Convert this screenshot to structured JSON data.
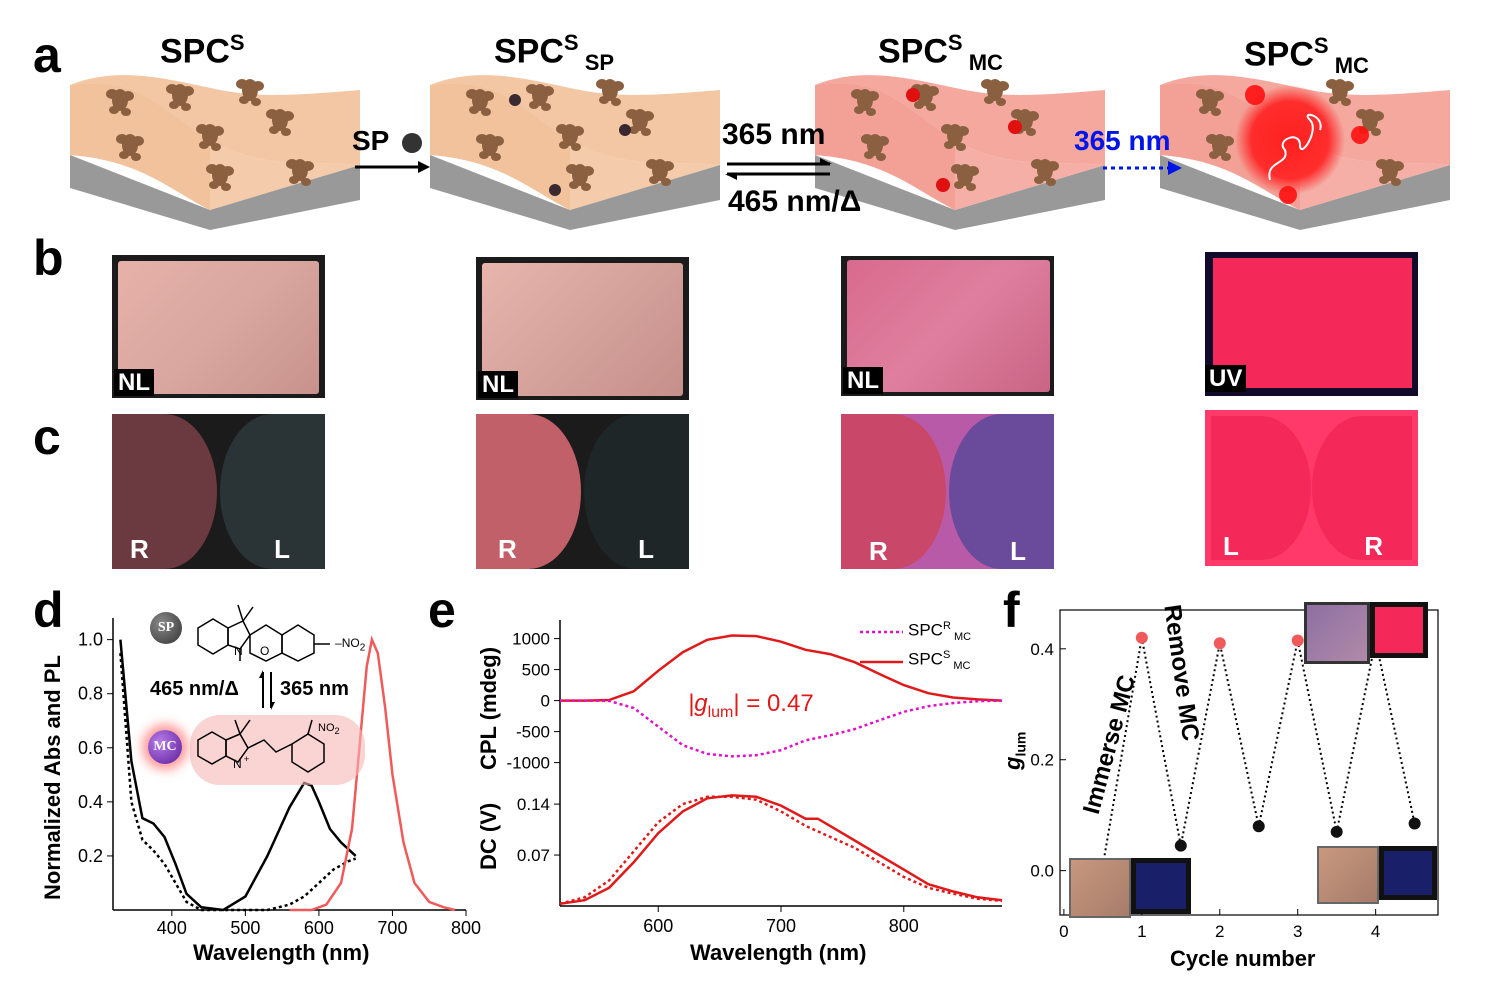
{
  "panel_labels": [
    "a",
    "b",
    "c",
    "d",
    "e",
    "f"
  ],
  "row_a": {
    "titles": [
      {
        "main": "SPC",
        "sup": "S",
        "sub": ""
      },
      {
        "main": "SPC",
        "sup": "S",
        "sub": " SP"
      },
      {
        "main": "SPC",
        "sup": "S",
        "sub": " MC"
      },
      {
        "main": "SPC",
        "sup": "S",
        "sub": " MC"
      }
    ],
    "arrow1_label": "SP",
    "arrow2_top": "365 nm",
    "arrow2_bottom": "465 nm/Δ",
    "arrow3_label": "365 nm",
    "colors": {
      "sheet_1": "#f2c29c",
      "sheet_3": "#f3a196",
      "uv_arrow": "#0015e8",
      "glow": "#ff1a1a"
    }
  },
  "row_b": {
    "tags": [
      "NL",
      "NL",
      "NL",
      "UV"
    ]
  },
  "row_c": {
    "tags": [
      [
        "R",
        "L"
      ],
      [
        "R",
        "L"
      ],
      [
        "R",
        "L"
      ],
      [
        "L",
        "R"
      ]
    ]
  },
  "panel_d": {
    "sp_badge": "SP",
    "mc_badge": "MC",
    "no2": "NO",
    "no2_sub": "2",
    "arrow_left": "465 nm/Δ",
    "arrow_right": "365 nm",
    "chart_data": {
      "type": "line",
      "xlabel": "Wavelength (nm)",
      "ylabel": "Normalized Abs and PL",
      "xlim": [
        320,
        800
      ],
      "ylim": [
        0,
        1.08
      ],
      "xticks": [
        "400",
        "500",
        "600",
        "700",
        "800"
      ],
      "yticks": [
        "0.2",
        "0.4",
        "0.6",
        "0.8",
        "1.0"
      ],
      "series": [
        {
          "style": "solid",
          "color": "#000000",
          "x": [
            330,
            345,
            360,
            375,
            390,
            405,
            420,
            440,
            470,
            500,
            530,
            560,
            580,
            590,
            600,
            615,
            630,
            650
          ],
          "y": [
            1.0,
            0.55,
            0.34,
            0.32,
            0.27,
            0.17,
            0.06,
            0.01,
            0.0,
            0.05,
            0.2,
            0.38,
            0.47,
            0.46,
            0.4,
            0.3,
            0.25,
            0.2
          ]
        },
        {
          "style": "dotted",
          "color": "#000000",
          "x": [
            330,
            345,
            360,
            375,
            390,
            405,
            420,
            440,
            470,
            500,
            530,
            560,
            580,
            600,
            620,
            640,
            650
          ],
          "y": [
            0.95,
            0.4,
            0.26,
            0.22,
            0.17,
            0.1,
            0.03,
            0.0,
            0.0,
            0.0,
            0.0,
            0.02,
            0.05,
            0.1,
            0.15,
            0.18,
            0.19
          ]
        },
        {
          "style": "solid",
          "color": "#f05a5a",
          "x": [
            560,
            590,
            610,
            630,
            645,
            655,
            665,
            672,
            680,
            690,
            700,
            715,
            730,
            750,
            770,
            785
          ],
          "y": [
            0.0,
            0.0,
            0.02,
            0.1,
            0.3,
            0.6,
            0.9,
            1.0,
            0.95,
            0.75,
            0.5,
            0.25,
            0.1,
            0.03,
            0.01,
            0.0
          ]
        }
      ]
    }
  },
  "panel_e": {
    "annotation_pre": "|g",
    "annotation_sub": "lum",
    "annotation_post": "| = 0.47",
    "legend": [
      {
        "main": "SPC",
        "sup": "R",
        "sub": " MC",
        "style": "dotted",
        "color": "#e011c8"
      },
      {
        "main": "SPC",
        "sup": "S",
        "sub": " MC",
        "style": "solid",
        "color": "#e01a1a"
      }
    ],
    "chart_data": [
      {
        "type": "line",
        "ylabel": "CPL (mdeg)",
        "xlim": [
          520,
          880
        ],
        "ylim": [
          -1200,
          1300
        ],
        "yticks": [
          "1000",
          "500",
          "0",
          "-500",
          "-1000"
        ],
        "series": [
          {
            "name": "SPCS MC",
            "style": "solid",
            "color": "#e01a1a",
            "x": [
              520,
              540,
              560,
              580,
              600,
              620,
              640,
              660,
              680,
              700,
              720,
              740,
              760,
              780,
              800,
              820,
              840,
              860,
              880
            ],
            "y": [
              0,
              0,
              10,
              150,
              480,
              780,
              980,
              1050,
              1040,
              950,
              820,
              750,
              620,
              430,
              250,
              120,
              50,
              20,
              0
            ]
          },
          {
            "name": "SPCR MC",
            "style": "dotted",
            "color": "#e011c8",
            "x": [
              520,
              540,
              560,
              580,
              600,
              620,
              640,
              660,
              680,
              700,
              720,
              740,
              760,
              780,
              800,
              820,
              840,
              860,
              880
            ],
            "y": [
              0,
              0,
              -5,
              -120,
              -420,
              -720,
              -860,
              -900,
              -880,
              -800,
              -640,
              -560,
              -460,
              -320,
              -180,
              -90,
              -40,
              -10,
              0
            ]
          }
        ]
      },
      {
        "type": "line",
        "xlabel": "Wavelength (nm)",
        "ylabel": "DC (V)",
        "xlim": [
          520,
          880
        ],
        "ylim": [
          0,
          0.18
        ],
        "xticks": [
          "600",
          "700",
          "800"
        ],
        "yticks": [
          "0.14",
          "0.07"
        ],
        "series": [
          {
            "style": "solid",
            "color": "#e01a1a",
            "x": [
              520,
              540,
              560,
              580,
              600,
              620,
              640,
              660,
              680,
              700,
              720,
              730,
              740,
              760,
              780,
              800,
              820,
              840,
              860,
              880
            ],
            "y": [
              0.003,
              0.008,
              0.025,
              0.06,
              0.1,
              0.13,
              0.148,
              0.152,
              0.15,
              0.138,
              0.12,
              0.12,
              0.11,
              0.09,
              0.07,
              0.05,
              0.03,
              0.02,
              0.012,
              0.008
            ]
          },
          {
            "style": "dotted",
            "color": "#e01a1a",
            "x": [
              520,
              540,
              560,
              580,
              600,
              620,
              640,
              660,
              680,
              700,
              720,
              740,
              760,
              780,
              800,
              820,
              840,
              860,
              880
            ],
            "y": [
              0.003,
              0.012,
              0.035,
              0.075,
              0.115,
              0.14,
              0.15,
              0.15,
              0.146,
              0.13,
              0.11,
              0.095,
              0.08,
              0.06,
              0.04,
              0.025,
              0.017,
              0.01,
              0.007
            ]
          }
        ]
      }
    ]
  },
  "panel_f": {
    "immerse_label": "Immerse MC",
    "remove_label": "Remove MC",
    "chart_data": {
      "type": "line",
      "xlabel": "Cycle number",
      "ylabel": "g",
      "ylabel_sub": "lum",
      "xlim": [
        -0.05,
        4.8
      ],
      "ylim": [
        -0.08,
        0.47
      ],
      "xticks": [
        "0",
        "1",
        "2",
        "3",
        "4"
      ],
      "yticks": [
        "0.0",
        "0.2",
        "0.4"
      ],
      "x": [
        0.5,
        1,
        1.5,
        2,
        2.5,
        3,
        3.5,
        4,
        4.5
      ],
      "y": [
        0.01,
        0.42,
        0.045,
        0.41,
        0.08,
        0.415,
        0.07,
        0.415,
        0.085
      ],
      "marker_colors": [
        "#111111",
        "#f05a5a",
        "#111111",
        "#f05a5a",
        "#111111",
        "#f05a5a",
        "#111111",
        "#f05a5a",
        "#111111"
      ]
    }
  }
}
